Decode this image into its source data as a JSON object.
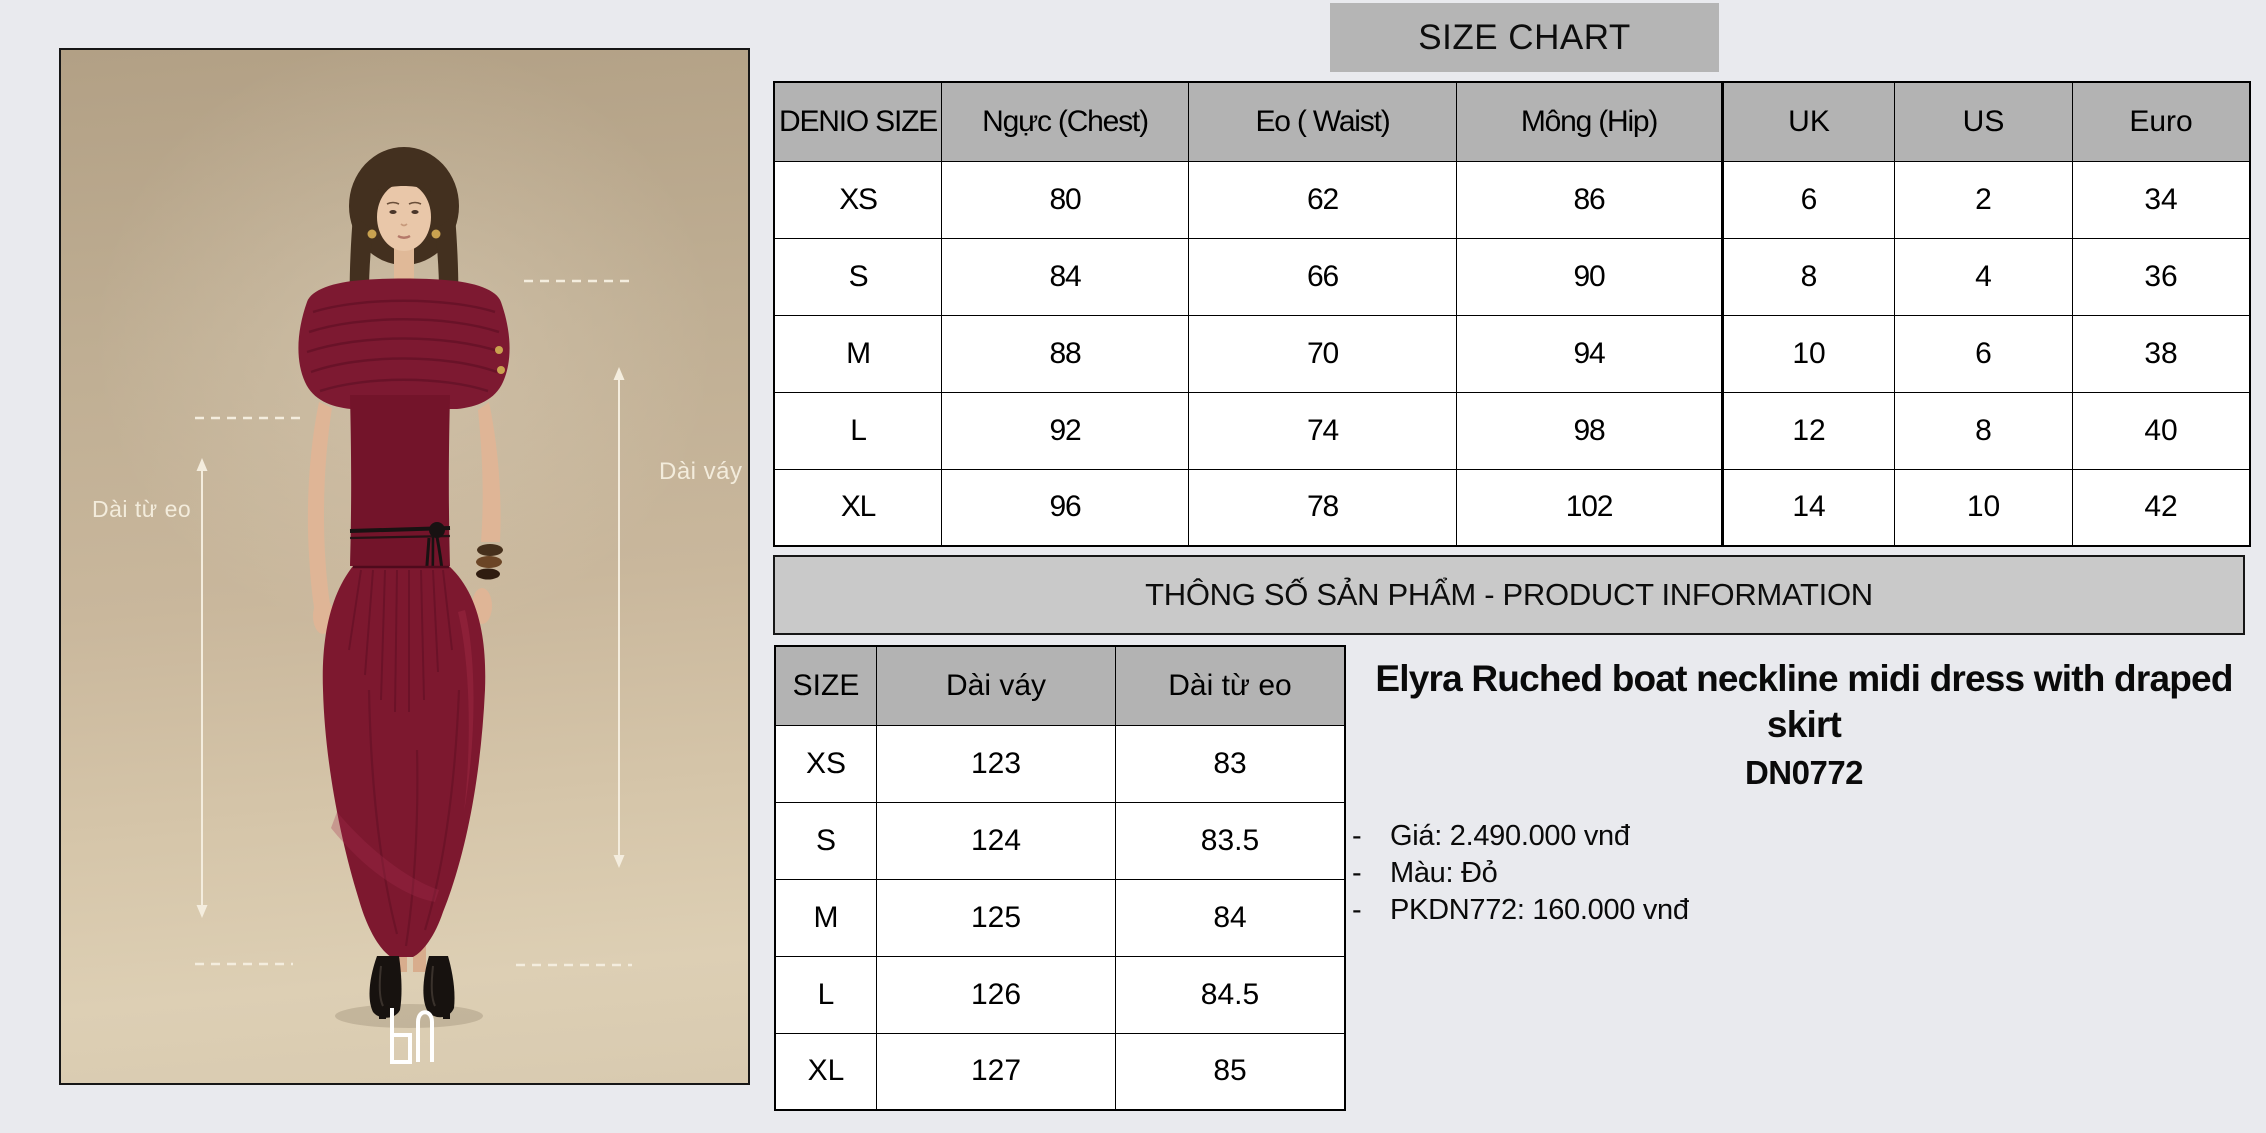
{
  "photo": {
    "annotations": {
      "waist_length_label": "Dài từ eo",
      "skirt_length_label": "Dài váy"
    },
    "logo": "DN monogram"
  },
  "size_chart": {
    "title": "SIZE CHART",
    "measure_table": {
      "headers": [
        "DENIO SIZE",
        "Ngực (Chest)",
        "Eo ( Waist)",
        "Mông (Hip)"
      ],
      "rows": [
        [
          "XS",
          "80",
          "62",
          "86"
        ],
        [
          "S",
          "84",
          "66",
          "90"
        ],
        [
          "M",
          "88",
          "70",
          "94"
        ],
        [
          "L",
          "92",
          "74",
          "98"
        ],
        [
          "XL",
          "96",
          "78",
          "102"
        ]
      ]
    },
    "conversion_table": {
      "headers": [
        "UK",
        "US",
        "Euro"
      ],
      "rows": [
        [
          "6",
          "2",
          "34"
        ],
        [
          "8",
          "4",
          "36"
        ],
        [
          "10",
          "6",
          "38"
        ],
        [
          "12",
          "8",
          "40"
        ],
        [
          "14",
          "10",
          "42"
        ]
      ]
    }
  },
  "product_info": {
    "banner": "THÔNG SỐ SẢN PHẨM - PRODUCT INFORMATION",
    "length_table": {
      "headers": [
        "SIZE",
        "Dài váy",
        "Dài từ eo"
      ],
      "rows": [
        [
          "XS",
          "123",
          "83"
        ],
        [
          "S",
          "124",
          "83.5"
        ],
        [
          "M",
          "125",
          "84"
        ],
        [
          "L",
          "126",
          "84.5"
        ],
        [
          "XL",
          "127",
          "85"
        ]
      ]
    },
    "title": "Elyra Ruched boat neckline midi dress with draped skirt",
    "sku": "DN0772",
    "details": [
      "Giá: 2.490.000 vnđ",
      "Màu: Đỏ",
      "PKDN772: 160.000 vnđ"
    ]
  },
  "colors": {
    "page_bg": "#e9eaee",
    "table_header_bg": "#b3b3b3",
    "title_block_bg": "#b5b5b5",
    "banner_bg": "#c9c9c9",
    "table_border": "#000000",
    "dress_red": "#7d182f",
    "photo_bg": "#c9b79c",
    "annotation_white": "#f3ecdc"
  }
}
